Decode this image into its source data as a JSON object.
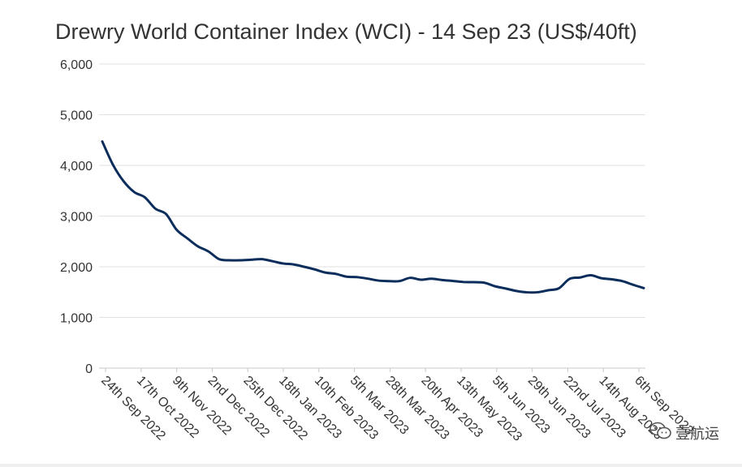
{
  "chart_data": {
    "type": "line",
    "title": "Drewry World Container Index (WCI) - 14 Sep 23 (US$/40ft)",
    "xlabel": "",
    "ylabel": "",
    "ylim": [
      0,
      6000
    ],
    "yticks": [
      0,
      1000,
      2000,
      3000,
      4000,
      5000,
      6000
    ],
    "ytick_labels": [
      "0",
      "1,000",
      "2,000",
      "3,000",
      "4,000",
      "5,000",
      "6,000"
    ],
    "grid": true,
    "legend": "none",
    "x_tick_labels": [
      "24th Sep 2022",
      "17th Oct 2022",
      "9th Nov 2022",
      "2nd Dec 2022",
      "25th Dec 2022",
      "18th Jan 2023",
      "10th Feb 2023",
      "5th Mar 2023",
      "28th Mar 2023",
      "20th Apr 2023",
      "13th May 2023",
      "5th Jun 2023",
      "29th Jun 2023",
      "22nd Jul 2023",
      "14th Aug 2023",
      "6th Sep 2023"
    ],
    "x": [
      "2022-09-22",
      "2022-09-29",
      "2022-10-06",
      "2022-10-13",
      "2022-10-20",
      "2022-10-27",
      "2022-11-03",
      "2022-11-10",
      "2022-11-17",
      "2022-11-24",
      "2022-12-01",
      "2022-12-08",
      "2022-12-15",
      "2022-12-22",
      "2022-12-29",
      "2023-01-05",
      "2023-01-12",
      "2023-01-19",
      "2023-01-26",
      "2023-02-02",
      "2023-02-09",
      "2023-02-16",
      "2023-02-23",
      "2023-03-02",
      "2023-03-09",
      "2023-03-16",
      "2023-03-23",
      "2023-03-30",
      "2023-04-06",
      "2023-04-13",
      "2023-04-20",
      "2023-04-27",
      "2023-05-04",
      "2023-05-11",
      "2023-05-18",
      "2023-05-25",
      "2023-06-01",
      "2023-06-08",
      "2023-06-15",
      "2023-06-22",
      "2023-06-29",
      "2023-07-06",
      "2023-07-13",
      "2023-07-20",
      "2023-07-27",
      "2023-08-03",
      "2023-08-10",
      "2023-08-17",
      "2023-08-24",
      "2023-08-31",
      "2023-09-07",
      "2023-09-14"
    ],
    "series": [
      {
        "color": "#0b2d5b",
        "values": [
          4472,
          4015,
          3689,
          3475,
          3371,
          3146,
          3041,
          2730,
          2562,
          2403,
          2302,
          2150,
          2127,
          2127,
          2138,
          2150,
          2111,
          2065,
          2046,
          2000,
          1948,
          1886,
          1859,
          1804,
          1795,
          1765,
          1727,
          1716,
          1717,
          1781,
          1744,
          1763,
          1738,
          1720,
          1699,
          1695,
          1684,
          1614,
          1570,
          1522,
          1495,
          1497,
          1536,
          1574,
          1759,
          1788,
          1831,
          1774,
          1752,
          1715,
          1644,
          1579
        ]
      }
    ]
  },
  "watermark": {
    "text": "壹航运",
    "icon": "wechat-icon"
  }
}
